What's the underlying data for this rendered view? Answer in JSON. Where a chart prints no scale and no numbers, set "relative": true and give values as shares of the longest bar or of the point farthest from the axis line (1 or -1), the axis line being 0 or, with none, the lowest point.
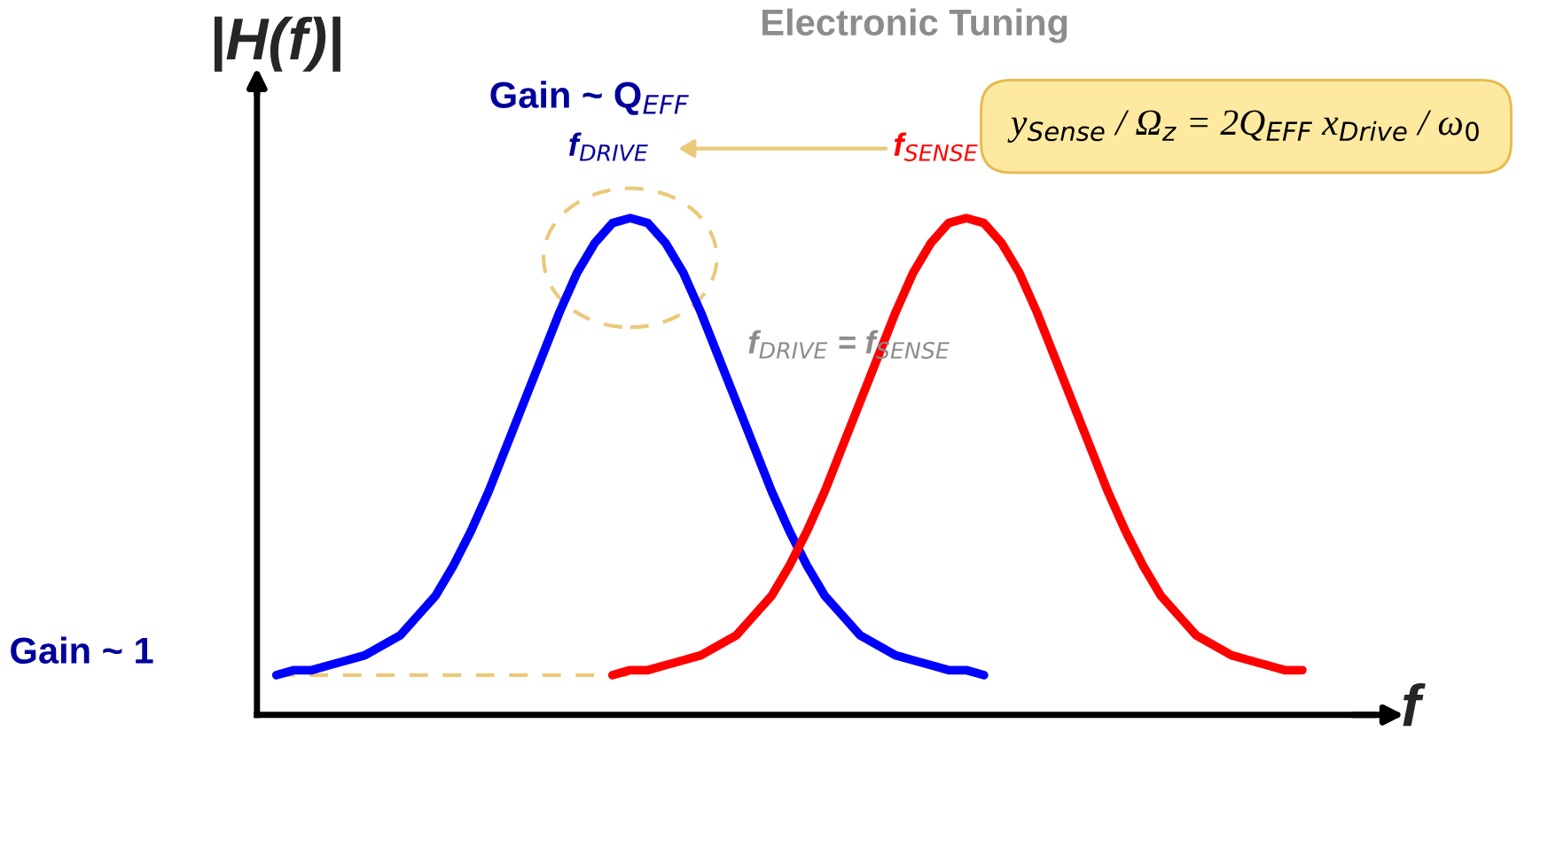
{
  "chart_data": {
    "type": "line",
    "relative": true,
    "xlabel": "f",
    "ylabel": "|H(f)|",
    "categories": [
      null,
      null,
      null,
      null,
      null,
      null,
      null,
      null,
      null,
      null,
      null,
      null,
      null,
      null,
      null,
      null,
      null,
      null,
      null,
      null,
      null,
      null,
      null,
      null,
      null,
      null,
      null,
      null,
      null,
      null,
      null,
      null,
      null,
      null,
      null,
      null,
      null,
      null,
      null,
      null,
      null,
      null,
      null,
      null,
      null,
      null,
      null,
      null,
      null,
      null,
      null,
      null,
      null,
      null,
      null,
      null,
      null,
      null,
      null
    ],
    "series": [
      {
        "color": "#0000ff",
        "values": [
          0.08,
          0.09,
          0.09,
          0.1,
          0.11,
          0.12,
          0.14,
          0.16,
          0.2,
          0.24,
          0.3,
          0.37,
          0.45,
          0.54,
          0.63,
          0.72,
          0.81,
          0.89,
          0.95,
          0.99,
          1.0,
          0.99,
          0.95,
          0.89,
          0.81,
          0.72,
          0.63,
          0.54,
          0.45,
          0.37,
          0.3,
          0.24,
          0.2,
          0.16,
          0.14,
          0.12,
          0.11,
          0.1,
          0.09,
          0.09,
          0.08,
          null,
          null,
          null,
          null,
          null,
          null,
          null,
          null,
          null,
          null,
          null,
          null,
          null,
          null,
          null,
          null,
          null,
          null
        ]
      },
      {
        "color": "#ff0000",
        "values": [
          null,
          null,
          null,
          null,
          null,
          null,
          null,
          null,
          null,
          null,
          null,
          null,
          null,
          null,
          null,
          null,
          null,
          null,
          null,
          0.08,
          0.09,
          0.09,
          0.1,
          0.11,
          0.12,
          0.14,
          0.16,
          0.2,
          0.24,
          0.3,
          0.37,
          0.45,
          0.54,
          0.63,
          0.72,
          0.81,
          0.89,
          0.95,
          0.99,
          1.0,
          0.99,
          0.95,
          0.89,
          0.81,
          0.72,
          0.63,
          0.54,
          0.45,
          0.37,
          0.3,
          0.24,
          0.2,
          0.16,
          0.14,
          0.12,
          0.11,
          0.1,
          0.09,
          0.09
        ]
      }
    ],
    "ref_lines": [
      {
        "axis": "y",
        "value": 0.08,
        "color": "#ebc97a",
        "line_style": "dashed"
      }
    ],
    "annotations": [
      "Electronic Tuning",
      "Gain ~ Q$_{EFF}$",
      "f$_{DRIVE}$",
      "f$_{SENSE}$",
      "f$_{DRIVE}$ = f$_{SENSE}$",
      "Gain ~ 1",
      "y$_{Sense}$ / Ω$_{z}$ = 2Q$_{EFF}$ x$_{Drive}$ / ω$_{0}$"
    ],
    "legend": false
  }
}
